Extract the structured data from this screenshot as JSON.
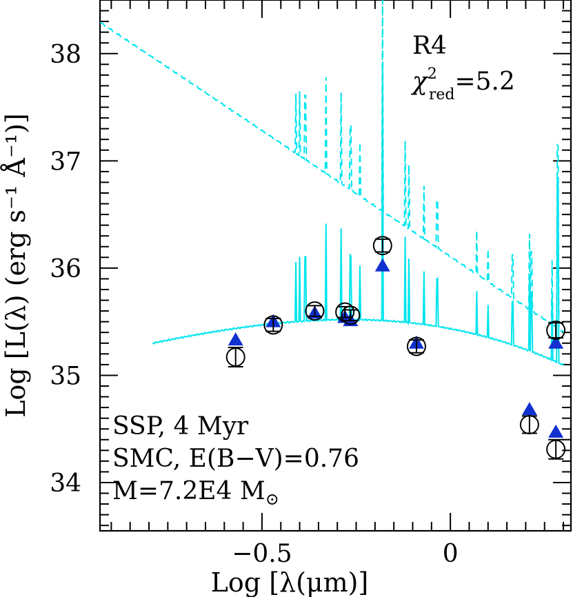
{
  "chart_data": {
    "type": "scatter",
    "title": "",
    "xlabel": "Log [λ(μm)]",
    "ylabel": "Log [L(λ) (erg s⁻¹ Å⁻¹)]",
    "xlim": [
      -0.93,
      0.32
    ],
    "ylim": [
      33.55,
      38.5
    ],
    "x_ticks": [
      {
        "value": -0.5,
        "label": "−0.5"
      },
      {
        "value": 0,
        "label": "0"
      }
    ],
    "y_ticks": [
      {
        "value": 34,
        "label": "34"
      },
      {
        "value": 35,
        "label": "35"
      },
      {
        "value": 36,
        "label": "36"
      },
      {
        "value": 37,
        "label": "37"
      },
      {
        "value": 38,
        "label": "38"
      }
    ],
    "grid": false,
    "annotations": {
      "region": "R4",
      "chi_symbol": "χ",
      "chi_sup": "2",
      "chi_sub": "red",
      "chi_value": "=5.2",
      "ssp": "SSP, 4 Myr",
      "extinction": "SMC, E(B−V)=0.76",
      "mass": "M=7.2E4 M",
      "mass_sub": "⊙"
    },
    "colors": {
      "model_line": "#00e5ee",
      "model_points": "#1030d0",
      "observed": "#000000"
    },
    "series": [
      {
        "name": "",
        "kind": "observed",
        "marker": "open-circle",
        "points": [
          {
            "x": -0.57,
            "y": 35.17,
            "err": 0.09
          },
          {
            "x": -0.47,
            "y": 35.47,
            "err": 0.06
          },
          {
            "x": -0.36,
            "y": 35.6,
            "err": 0.05
          },
          {
            "x": -0.28,
            "y": 35.59,
            "err": 0.05
          },
          {
            "x": -0.265,
            "y": 35.56,
            "err": 0.05
          },
          {
            "x": -0.18,
            "y": 36.21,
            "err": 0.06
          },
          {
            "x": -0.09,
            "y": 35.27,
            "err": 0.06
          },
          {
            "x": 0.21,
            "y": 34.54,
            "err": 0.08
          },
          {
            "x": 0.28,
            "y": 35.42,
            "err": 0.07
          },
          {
            "x": 0.28,
            "y": 34.31,
            "err": 0.09
          }
        ]
      },
      {
        "name": "",
        "kind": "model",
        "marker": "filled-triangle",
        "points": [
          {
            "x": -0.57,
            "y": 35.33
          },
          {
            "x": -0.47,
            "y": 35.5
          },
          {
            "x": -0.36,
            "y": 35.58
          },
          {
            "x": -0.28,
            "y": 35.54
          },
          {
            "x": -0.265,
            "y": 35.51
          },
          {
            "x": -0.18,
            "y": 36.02
          },
          {
            "x": -0.09,
            "y": 35.3
          },
          {
            "x": 0.21,
            "y": 34.68
          },
          {
            "x": 0.28,
            "y": 35.3
          },
          {
            "x": 0.28,
            "y": 34.47
          }
        ]
      }
    ]
  }
}
